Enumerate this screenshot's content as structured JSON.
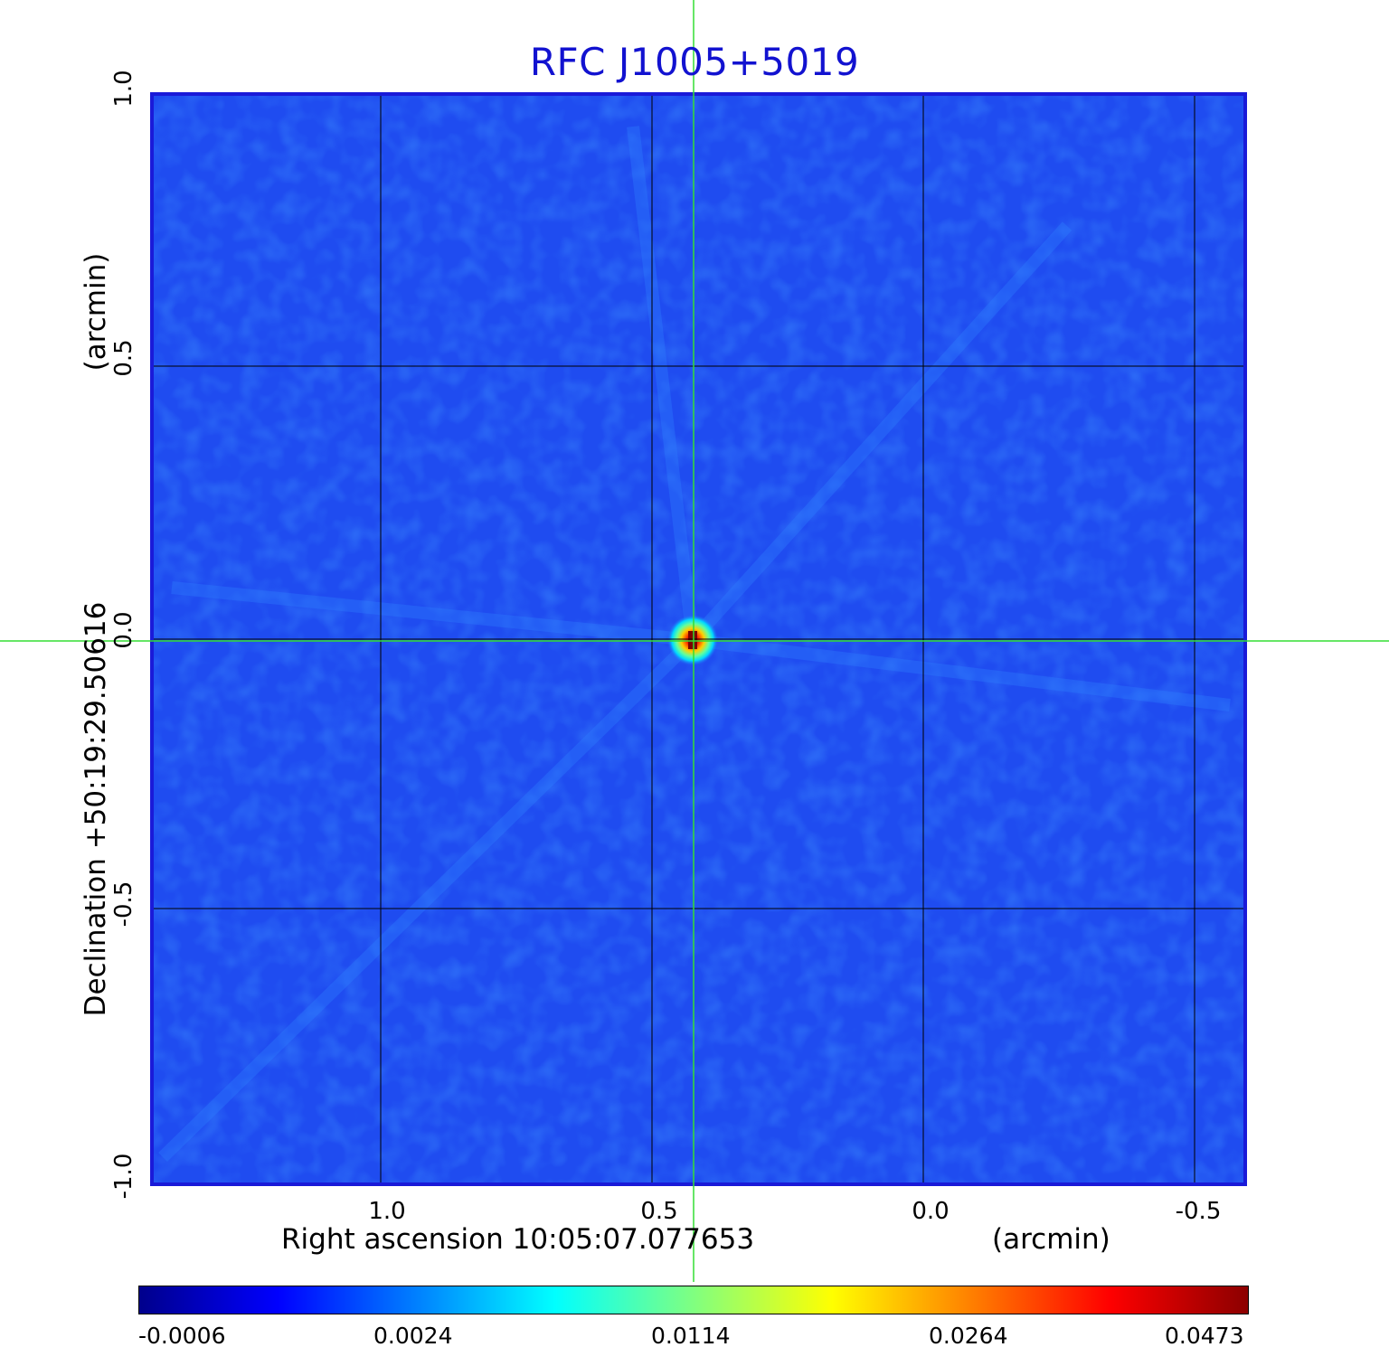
{
  "title": "RFC J1005+5019",
  "x_axis": {
    "label": "Right ascension  10:05:07.077653",
    "unit": "(arcmin)",
    "ticks": [
      "1.0",
      "0.5",
      "0.0",
      "-0.5"
    ]
  },
  "y_axis": {
    "label": "Declination  +50:19:29.50616",
    "unit": "(arcmin)",
    "ticks": [
      "1.0",
      "0.5",
      "0.0",
      "-0.5",
      "-1.0"
    ]
  },
  "colorbar": {
    "ticks": [
      "-0.0006",
      "0.0024",
      "0.0114",
      "0.0264",
      "0.0473"
    ],
    "colors": [
      "#00008c",
      "#0000ff",
      "#0080ff",
      "#00ffff",
      "#80ff80",
      "#ffff00",
      "#ff8000",
      "#ff0000",
      "#8c0000"
    ]
  },
  "image": {
    "background_color": "#1f4cf0",
    "grid_color": "#000000",
    "crosshair_color": "#33dd33",
    "frame_color": "#1a1ad8"
  }
}
